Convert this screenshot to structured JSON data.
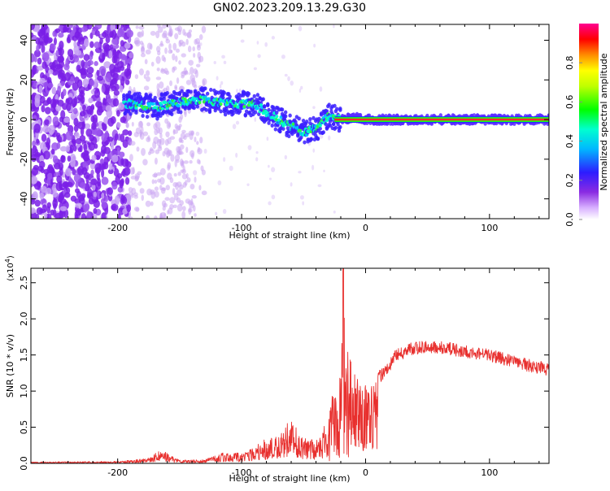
{
  "figure_title": "GN02.2023.209.13.29.G30",
  "chart_data": [
    {
      "type": "heatmap",
      "xlabel": "Height of straight line (km)",
      "ylabel": "Frequency (Hz)",
      "xlim": [
        -270,
        148
      ],
      "ylim": [
        -50,
        48
      ],
      "x_ticks": [
        -200,
        -100,
        0,
        100
      ],
      "x_tick_labels": [
        "-200",
        "-100",
        "0",
        "100"
      ],
      "y_ticks": [
        -40,
        -20,
        0,
        20,
        40
      ],
      "y_tick_labels": [
        "-40",
        "-20",
        "0",
        "20",
        "40"
      ],
      "colorbar": {
        "label": "Normalized spectral amplitude",
        "range": [
          0,
          1
        ],
        "ticks": [
          0.0,
          0.2,
          0.4,
          0.6,
          0.8
        ],
        "tick_labels": [
          "0.0",
          "0.2",
          "0.4",
          "0.6",
          "0.8"
        ]
      },
      "ridge": [
        {
          "x": -190,
          "y": 8
        },
        {
          "x": -170,
          "y": 6
        },
        {
          "x": -150,
          "y": 9
        },
        {
          "x": -130,
          "y": 10
        },
        {
          "x": -110,
          "y": 8
        },
        {
          "x": -90,
          "y": 8
        },
        {
          "x": -80,
          "y": 4
        },
        {
          "x": -70,
          "y": 0
        },
        {
          "x": -60,
          "y": -3
        },
        {
          "x": -50,
          "y": -6
        },
        {
          "x": -40,
          "y": -5
        },
        {
          "x": -30,
          "y": 2
        },
        {
          "x": -20,
          "y": 0
        },
        {
          "x": -10,
          "y": 1
        },
        {
          "x": 0,
          "y": 0
        },
        {
          "x": 50,
          "y": 0
        },
        {
          "x": 100,
          "y": 0
        },
        {
          "x": 148,
          "y": 0
        }
      ],
      "grid": false
    },
    {
      "type": "line",
      "xlabel": "Height of straight line (km)",
      "ylabel": "SNR (10 * v/v)",
      "y_multiplier_label": "(x10",
      "y_multiplier_exp": "4",
      "xlim": [
        -270,
        148
      ],
      "ylim": [
        0,
        2.7
      ],
      "x_ticks": [
        -200,
        -100,
        0,
        100
      ],
      "x_tick_labels": [
        "-200",
        "-100",
        "0",
        "100"
      ],
      "y_ticks": [
        0.0,
        0.5,
        1.0,
        1.5,
        2.0,
        2.5
      ],
      "y_tick_labels": [
        "0.0",
        "0.5",
        "1.0",
        "1.5",
        "2.0",
        "2.5"
      ],
      "series": [
        {
          "color": "#e8302e",
          "envelope": [
            {
              "x": -270,
              "y": 0.02
            },
            {
              "x": -200,
              "y": 0.03
            },
            {
              "x": -175,
              "y": 0.08
            },
            {
              "x": -165,
              "y": 0.2
            },
            {
              "x": -150,
              "y": 0.05
            },
            {
              "x": -130,
              "y": 0.05
            },
            {
              "x": -115,
              "y": 0.15
            },
            {
              "x": -100,
              "y": 0.15
            },
            {
              "x": -80,
              "y": 0.35
            },
            {
              "x": -60,
              "y": 0.6
            },
            {
              "x": -50,
              "y": 0.35
            },
            {
              "x": -40,
              "y": 0.35
            },
            {
              "x": -30,
              "y": 0.6
            },
            {
              "x": -25,
              "y": 1.2
            },
            {
              "x": -20,
              "y": 1.4
            },
            {
              "x": -18,
              "y": 2.7
            },
            {
              "x": -15,
              "y": 1.6
            },
            {
              "x": -10,
              "y": 1.3
            },
            {
              "x": 0,
              "y": 1.1
            },
            {
              "x": 15,
              "y": 1.3
            },
            {
              "x": 25,
              "y": 1.55
            },
            {
              "x": 40,
              "y": 1.65
            },
            {
              "x": 60,
              "y": 1.66
            },
            {
              "x": 80,
              "y": 1.6
            },
            {
              "x": 100,
              "y": 1.55
            },
            {
              "x": 120,
              "y": 1.45
            },
            {
              "x": 148,
              "y": 1.35
            }
          ]
        }
      ],
      "grid": false
    }
  ]
}
